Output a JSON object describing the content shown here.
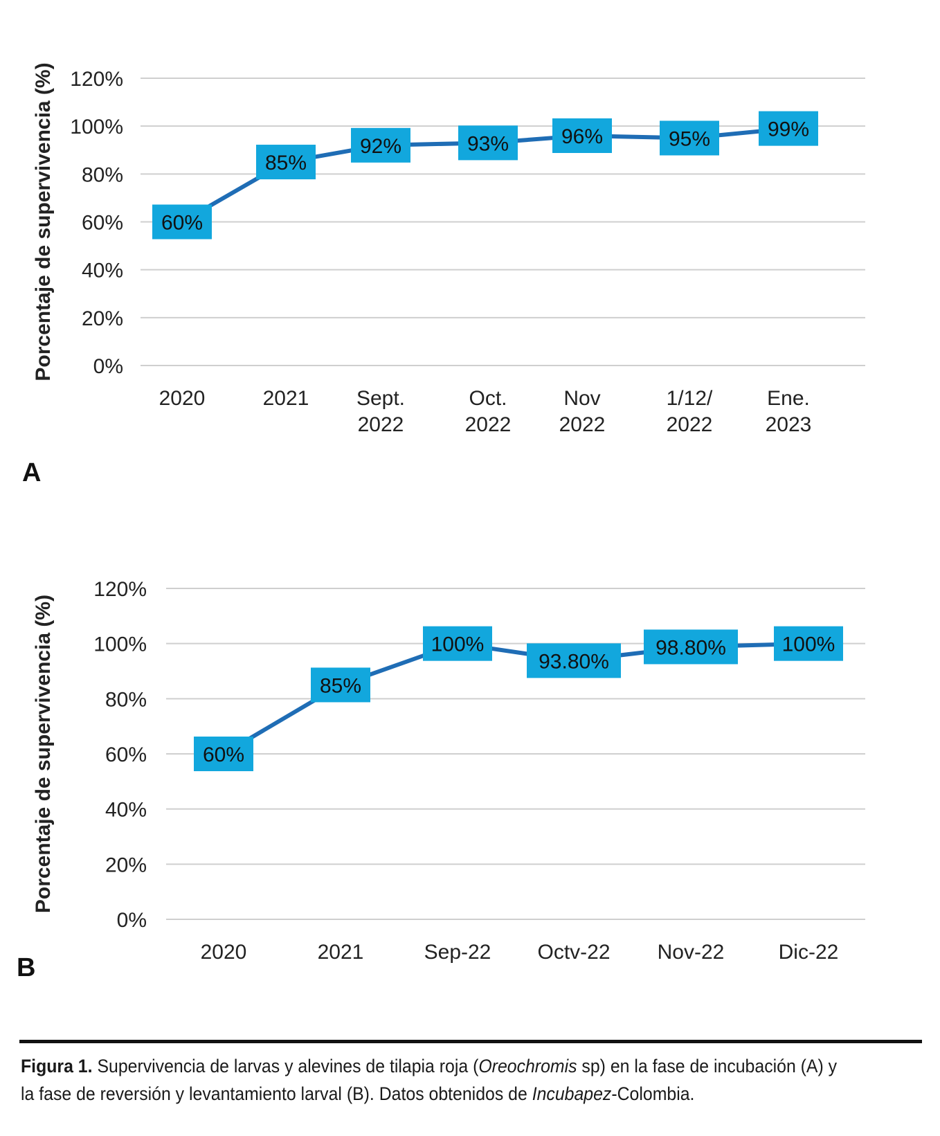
{
  "chart_data": [
    {
      "panel": "A",
      "type": "line",
      "ylabel": "Porcentaje de supervivencia (%)",
      "ylim": [
        0,
        120
      ],
      "yticks": [
        "0%",
        "20%",
        "40%",
        "60%",
        "80%",
        "100%",
        "120%"
      ],
      "categories": [
        [
          "2020"
        ],
        [
          "2021"
        ],
        [
          "Sept.",
          "2022"
        ],
        [
          "Oct.",
          "2022"
        ],
        [
          "Nov",
          "2022"
        ],
        [
          "1/12/",
          "2022"
        ],
        [
          "Ene.",
          "2023"
        ]
      ],
      "values": [
        60,
        85,
        92,
        93,
        96,
        95,
        99
      ],
      "data_labels": [
        "60%",
        "85%",
        "92%",
        "93%",
        "96%",
        "95%",
        "99%"
      ],
      "line_color": "#1f6db5",
      "label_bg": "#12a7dd",
      "grid": true
    },
    {
      "panel": "B",
      "type": "line",
      "ylabel": "Porcentaje de supervivencia (%)",
      "ylim": [
        0,
        120
      ],
      "yticks": [
        "0%",
        "20%",
        "40%",
        "60%",
        "80%",
        "100%",
        "120%"
      ],
      "categories": [
        [
          "2020"
        ],
        [
          "2021"
        ],
        [
          "Sep-22"
        ],
        [
          "Octv-22"
        ],
        [
          "Nov-22"
        ],
        [
          "Dic-22"
        ]
      ],
      "values": [
        60,
        85,
        100,
        93.8,
        98.8,
        100
      ],
      "data_labels": [
        "60%",
        "85%",
        "100%",
        "93.80%",
        "98.80%",
        "100%"
      ],
      "line_color": "#1f6db5",
      "label_bg": "#12a7dd",
      "grid": true
    }
  ],
  "caption": {
    "label": "Figura 1.",
    "line1_a": "Supervivencia de larvas y alevines de tilapia roja (",
    "line1_italic": "Oreochromis",
    "line1_b": " sp) en la fase de incubación (A) y",
    "line2_a": "la fase de reversión y levantamiento larval (B). Datos obtenidos de ",
    "line2_italic": "Incubapez",
    "line2_b": "-Colombia."
  }
}
